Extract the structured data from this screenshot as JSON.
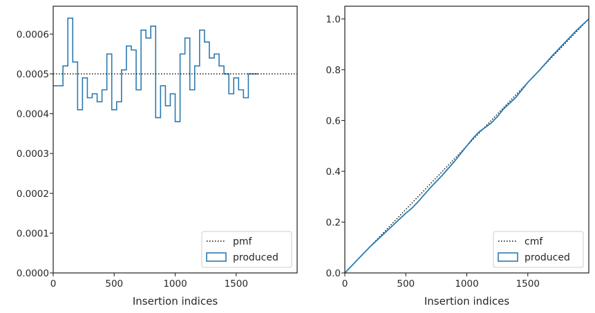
{
  "colors": {
    "histogram": "#2a7ab0",
    "reference": "#000000",
    "axis": "#262626"
  },
  "chart_data": [
    {
      "type": "histogram",
      "panel": "left",
      "xlabel": "Insertion indices",
      "ylabel": "",
      "xlim": [
        0,
        2000
      ],
      "ylim": [
        0,
        0.00067
      ],
      "xticks": [
        0,
        500,
        1000,
        1500
      ],
      "xtick_labels": [
        "0",
        "500",
        "1000",
        "1500"
      ],
      "yticks": [
        0,
        0.0001,
        0.0002,
        0.0003,
        0.0004,
        0.0005,
        0.0006
      ],
      "ytick_labels": [
        "0.0000",
        "0.0001",
        "0.0002",
        "0.0003",
        "0.0004",
        "0.0005",
        "0.0006"
      ],
      "bin_width": 40,
      "bin_edges_start": 0,
      "series": [
        {
          "name": "produced",
          "style": "step",
          "values": [
            0.00047,
            0.00047,
            0.00052,
            0.00064,
            0.00053,
            0.00041,
            0.00049,
            0.00044,
            0.00045,
            0.00043,
            0.00046,
            0.00055,
            0.00041,
            0.00043,
            0.00051,
            0.00057,
            0.00056,
            0.00046,
            0.00061,
            0.00059,
            0.00062,
            0.00039,
            0.00047,
            0.00042,
            0.00045,
            0.00038,
            0.00055,
            0.00059,
            0.00046,
            0.00052,
            0.00061,
            0.00058,
            0.00054,
            0.00055,
            0.00052,
            0.0005,
            0.00045,
            0.00049,
            0.00046,
            0.00044,
            0.0005,
            0.0005
          ]
        },
        {
          "name": "pmf",
          "style": "dotted",
          "value": 0.0005
        }
      ],
      "legend": {
        "placement": "lower-right",
        "entries": [
          "pmf",
          "produced"
        ]
      }
    },
    {
      "type": "line",
      "panel": "right",
      "xlabel": "Insertion indices",
      "ylabel": "",
      "xlim": [
        0,
        2000
      ],
      "ylim": [
        0,
        1.05
      ],
      "xticks": [
        0,
        500,
        1000,
        1500
      ],
      "xtick_labels": [
        "0",
        "500",
        "1000",
        "1500"
      ],
      "yticks": [
        0,
        0.2,
        0.4,
        0.6,
        0.8,
        1.0
      ],
      "ytick_labels": [
        "0.0",
        "0.2",
        "0.4",
        "0.6",
        "0.8",
        "1.0"
      ],
      "series": [
        {
          "name": "cmf",
          "style": "dotted",
          "x": [
            0,
            2000
          ],
          "y": [
            0,
            1.0
          ]
        },
        {
          "name": "produced",
          "style": "solid",
          "x": [
            0,
            100,
            200,
            300,
            400,
            500,
            550,
            600,
            700,
            800,
            900,
            1000,
            1050,
            1100,
            1200,
            1250,
            1300,
            1400,
            1500,
            1600,
            1700,
            1800,
            1900,
            2000
          ],
          "y": [
            0,
            0.05,
            0.1,
            0.145,
            0.19,
            0.235,
            0.255,
            0.28,
            0.335,
            0.385,
            0.44,
            0.5,
            0.53,
            0.555,
            0.59,
            0.615,
            0.645,
            0.69,
            0.75,
            0.8,
            0.855,
            0.905,
            0.955,
            1.0
          ]
        }
      ],
      "legend": {
        "placement": "lower-right",
        "entries": [
          "cmf",
          "produced"
        ]
      }
    }
  ]
}
